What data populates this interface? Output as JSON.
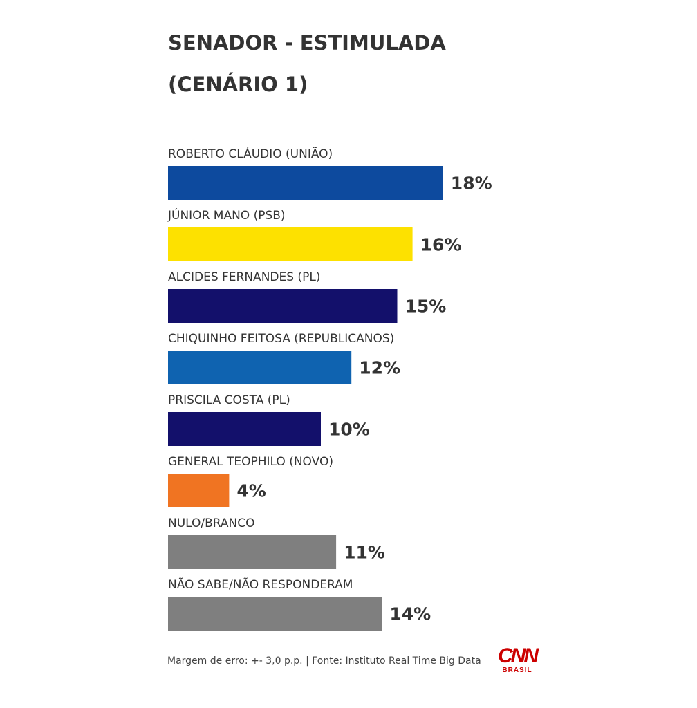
{
  "chart_data": {
    "type": "bar",
    "orientation": "horizontal",
    "title": "SENADOR - ESTIMULADA (CENÁRIO 1)",
    "categories": [
      "ROBERTO CLÁUDIO (UNIÃO)",
      "JÚNIOR MANO (PSB)",
      "ALCIDES FERNANDES (PL)",
      "CHIQUINHO FEITOSA (REPUBLICANOS)",
      "PRISCILA COSTA (PL)",
      "GENERAL TEOPHILO (NOVO)",
      "NULO/BRANCO",
      "NÃO SABE/NÃO RESPONDERAM"
    ],
    "values": [
      18,
      16,
      15,
      12,
      10,
      4,
      11,
      14
    ],
    "value_labels": [
      "18%",
      "16%",
      "15%",
      "12%",
      "10%",
      "4%",
      "11%",
      "14%"
    ],
    "colors": [
      "#0d4a9e",
      "#fde100",
      "#13106b",
      "#0f63b0",
      "#13106b",
      "#f07422",
      "#7f7f7f",
      "#7f7f7f"
    ],
    "unit": "%",
    "xlabel": "",
    "ylabel": "",
    "grid": false
  },
  "footer": {
    "note": "Margem de erro: +- 3,0 p.p. | Fonte: Instituto Real Time Big Data"
  },
  "logo": {
    "main": "CNN",
    "sub": "BRASIL"
  }
}
